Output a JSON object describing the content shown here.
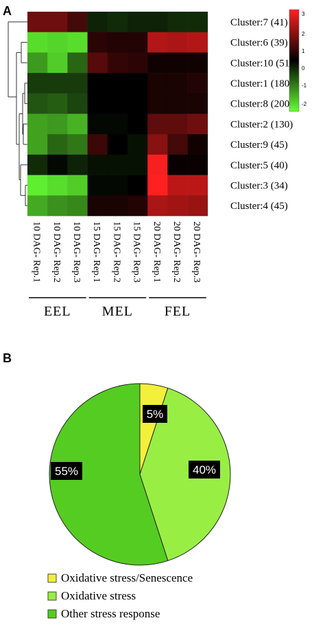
{
  "panels": {
    "a": "A",
    "b": "B"
  },
  "chart_data": [
    {
      "type": "heatmap",
      "columns": [
        "10 DAG- Rep.1",
        "10 DAG- Rep.2",
        "10 DAG- Rep.3",
        "15 DAG- Rep.1",
        "15 DAG- Rep.2",
        "15 DAG- Rep.3",
        "20 DAG- Rep.1",
        "20 DAG- Rep.2",
        "20 DAG- Rep.3"
      ],
      "groups": [
        {
          "label": "EEL",
          "cols": [
            0,
            2
          ]
        },
        {
          "label": "MEL",
          "cols": [
            3,
            5
          ]
        },
        {
          "label": "FEL",
          "cols": [
            6,
            8
          ]
        }
      ],
      "rows": [
        "Cluster:7 (41)",
        "Cluster:6 (39)",
        "Cluster:10 (51)",
        "Cluster:1 (180)",
        "Cluster:8 (200)",
        "Cluster:2 (130)",
        "Cluster:9 (45)",
        "Cluster:5 (40)",
        "Cluster:3 (34)",
        "Cluster:4 (45)"
      ],
      "values": [
        [
          1.3,
          1.3,
          0.8,
          -0.4,
          -0.5,
          -0.4,
          -0.4,
          -0.5,
          -0.5
        ],
        [
          -2.6,
          -2.5,
          -2.6,
          0.5,
          0.4,
          0.4,
          2.1,
          2.0,
          2.1
        ],
        [
          -1.8,
          -2.4,
          -1.2,
          1.0,
          0.6,
          0.5,
          0.2,
          0.2,
          0.2
        ],
        [
          -0.7,
          -0.7,
          -0.7,
          0.0,
          0.0,
          0.0,
          0.3,
          0.3,
          0.4
        ],
        [
          -1.0,
          -1.1,
          -0.8,
          0.0,
          0.0,
          0.0,
          0.3,
          0.3,
          0.3
        ],
        [
          -1.9,
          -1.8,
          -2.1,
          -0.1,
          -0.1,
          0.0,
          1.1,
          1.1,
          1.3
        ],
        [
          -1.9,
          -1.2,
          -1.4,
          0.7,
          0.0,
          -0.2,
          1.6,
          0.8,
          0.2
        ],
        [
          -0.5,
          -0.1,
          -0.4,
          -0.2,
          -0.2,
          -0.2,
          2.9,
          0.1,
          0.1
        ],
        [
          -2.8,
          -2.6,
          -2.4,
          -0.1,
          -0.1,
          0.0,
          3.0,
          2.2,
          2.2
        ],
        [
          -2.0,
          -1.7,
          -1.6,
          0.3,
          0.3,
          0.4,
          2.0,
          1.9,
          1.8
        ]
      ],
      "colorscale": {
        "min": -3,
        "mid": 0,
        "max": 3,
        "low_color": "#66ff33",
        "mid_color": "#000000",
        "high_color": "#ff2020",
        "ticks": [
          "3",
          "2",
          "1",
          "0",
          "-1",
          "-2"
        ]
      },
      "dendrogram": "rows"
    },
    {
      "type": "pie",
      "slices": [
        {
          "label": "Oxidative stress/Senescence",
          "value": 5,
          "display": "5%",
          "color": "#f2f03a"
        },
        {
          "label": "Oxidative stress",
          "value": 40,
          "display": "40%",
          "color": "#99ee44"
        },
        {
          "label": "Other stress response",
          "value": 55,
          "display": "55%",
          "color": "#55cc22"
        }
      ],
      "legend": "bottom"
    }
  ]
}
